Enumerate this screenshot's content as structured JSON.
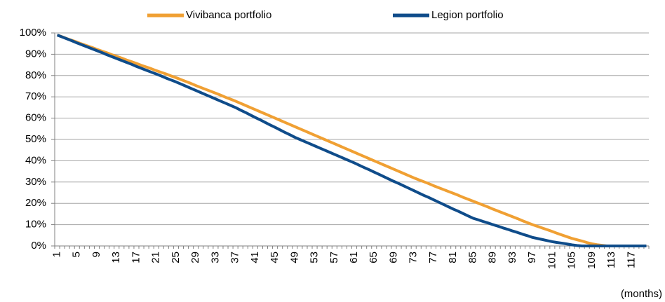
{
  "chart_data": {
    "type": "line",
    "x_label": "(months)",
    "categories": [
      1,
      null,
      null,
      null,
      5,
      null,
      null,
      null,
      9,
      null,
      null,
      null,
      13,
      null,
      null,
      null,
      17,
      null,
      null,
      null,
      21,
      null,
      null,
      null,
      25,
      null,
      null,
      null,
      29,
      null,
      null,
      null,
      33,
      null,
      null,
      null,
      37,
      null,
      null,
      null,
      41,
      null,
      null,
      null,
      45,
      null,
      null,
      null,
      49,
      null,
      null,
      null,
      53,
      null,
      null,
      null,
      57,
      null,
      null,
      null,
      61,
      null,
      null,
      null,
      65,
      null,
      null,
      null,
      69,
      null,
      null,
      null,
      73,
      null,
      null,
      null,
      77,
      null,
      null,
      null,
      81,
      null,
      null,
      null,
      85,
      null,
      null,
      null,
      89,
      null,
      null,
      null,
      93,
      null,
      null,
      null,
      97,
      null,
      null,
      null,
      101,
      null,
      null,
      null,
      105,
      null,
      null,
      null,
      109,
      null,
      null,
      null,
      113,
      null,
      null,
      null,
      117,
      null,
      null,
      null
    ],
    "series": [
      {
        "name": "Vivibanca portfolio",
        "color": "#f0a033",
        "values": [
          99,
          98.2,
          97.3,
          96.5,
          95.7,
          94.8,
          94,
          93.2,
          92.3,
          91.5,
          90.7,
          89.8,
          89,
          88.2,
          87.3,
          86.5,
          85.7,
          84.8,
          84,
          83.2,
          82.3,
          81.5,
          80.7,
          79.8,
          79,
          78.1,
          77.2,
          76.3,
          75.3,
          74.4,
          73.5,
          72.6,
          71.7,
          70.8,
          69.8,
          68.9,
          68,
          67,
          66,
          65,
          64,
          63,
          62,
          61,
          60,
          59,
          58,
          57,
          56,
          55,
          54,
          53,
          52,
          51,
          50,
          49,
          48,
          47,
          46,
          45,
          44,
          43,
          42,
          41,
          40,
          39,
          38,
          37,
          36,
          35,
          34,
          33,
          32,
          31.1,
          30.2,
          29.3,
          28.3,
          27.4,
          26.5,
          25.6,
          24.7,
          23.8,
          22.8,
          21.9,
          21,
          20.1,
          19.2,
          18.3,
          17.3,
          16.4,
          15.5,
          14.6,
          13.7,
          12.8,
          11.8,
          10.9,
          10,
          9.2,
          8.4,
          7.6,
          6.8,
          5.9,
          5.1,
          4.3,
          3.5,
          2.9,
          2.3,
          1.6,
          1,
          0.6,
          0.3,
          0,
          0,
          0,
          0,
          0,
          0,
          0,
          0,
          0
        ]
      },
      {
        "name": "Legion portfolio",
        "color": "#0f4c8a",
        "values": [
          99,
          98.1,
          97.2,
          96.3,
          95.3,
          94.4,
          93.5,
          92.6,
          91.7,
          90.8,
          89.8,
          88.9,
          88,
          87.1,
          86.2,
          85.3,
          84.3,
          83.4,
          82.5,
          81.6,
          80.7,
          79.8,
          78.8,
          77.9,
          77,
          76,
          75,
          74,
          73,
          72,
          71,
          70,
          69,
          68,
          67,
          66,
          65,
          63.8,
          62.7,
          61.5,
          60.3,
          59.2,
          58,
          56.8,
          55.7,
          54.5,
          53.3,
          52.2,
          51,
          50,
          49,
          48,
          47,
          46,
          45,
          44,
          43,
          42,
          41,
          40,
          39,
          37.9,
          36.8,
          35.8,
          34.7,
          33.6,
          32.5,
          31.4,
          30.3,
          29.3,
          28.2,
          27.1,
          26,
          24.9,
          23.8,
          22.8,
          21.7,
          20.6,
          19.5,
          18.4,
          17.3,
          16.3,
          15.2,
          14.1,
          13,
          12.3,
          11.5,
          10.8,
          10,
          9.3,
          8.5,
          7.8,
          7,
          6.3,
          5.5,
          4.8,
          4,
          3.5,
          3,
          2.5,
          2,
          1.6,
          1.3,
          0.9,
          0.5,
          0.2,
          0,
          0,
          0,
          0,
          0,
          0,
          0,
          0,
          0,
          0,
          0,
          0,
          0,
          0
        ]
      }
    ],
    "ylim": [
      0,
      100
    ],
    "yticks": [
      {
        "value": 0,
        "label": "0%"
      },
      {
        "value": 10,
        "label": "10%"
      },
      {
        "value": 20,
        "label": "20%"
      },
      {
        "value": 30,
        "label": "30%"
      },
      {
        "value": 40,
        "label": "40%"
      },
      {
        "value": 50,
        "label": "50%"
      },
      {
        "value": 60,
        "label": "60%"
      },
      {
        "value": 70,
        "label": "70%"
      },
      {
        "value": 80,
        "label": "80%"
      },
      {
        "value": 90,
        "label": "90%"
      },
      {
        "value": 100,
        "label": "100%"
      }
    ],
    "grid": true,
    "legend": "top"
  }
}
